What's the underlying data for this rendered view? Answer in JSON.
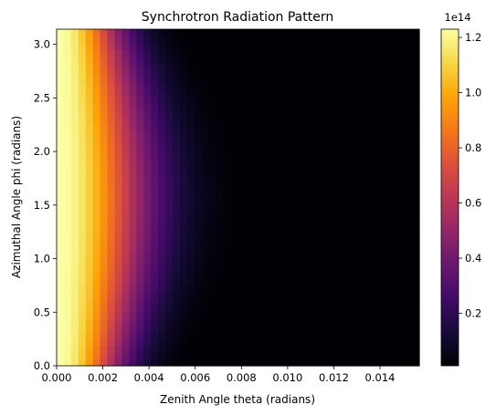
{
  "chart_data": {
    "type": "heatmap",
    "title": "Synchrotron Radiation Pattern",
    "xlabel": "Zenith Angle theta (radians)",
    "ylabel": "Azimuthal Angle phi (radians)",
    "xlim": [
      0,
      0.0157
    ],
    "ylim": [
      0,
      3.1416
    ],
    "x_ticks": [
      0.0,
      0.002,
      0.004,
      0.006,
      0.008,
      0.01,
      0.012,
      0.014
    ],
    "x_tick_labels": [
      "0.000",
      "0.002",
      "0.004",
      "0.006",
      "0.008",
      "0.010",
      "0.012",
      "0.014"
    ],
    "y_ticks": [
      0.0,
      0.5,
      1.0,
      1.5,
      2.0,
      2.5,
      3.0
    ],
    "y_tick_labels": [
      "0.0",
      "0.5",
      "1.0",
      "1.5",
      "2.0",
      "2.5",
      "3.0"
    ],
    "grid": {
      "nx": 50,
      "ny": 50
    },
    "colormap": "inferno",
    "colorbar": {
      "range": [
        1000000000000.0,
        123000000000000.0
      ],
      "ticks": [
        0.2,
        0.4,
        0.6,
        0.8,
        1.0,
        1.2
      ],
      "tick_labels": [
        "0.2",
        "0.4",
        "0.6",
        "0.8",
        "1.0",
        "1.2"
      ],
      "offset_text": "1e14"
    },
    "intensity_model": {
      "peak_at_theta0": 123000000000000.0,
      "theta_scale_at_phi0": 0.0025,
      "theta_scale_at_phi_pi_over_2": 0.0036,
      "form": "I0 * exp(-(theta/s(phi))^2), s(phi) = s0 + (s1 - s0) * sin(phi)"
    }
  }
}
